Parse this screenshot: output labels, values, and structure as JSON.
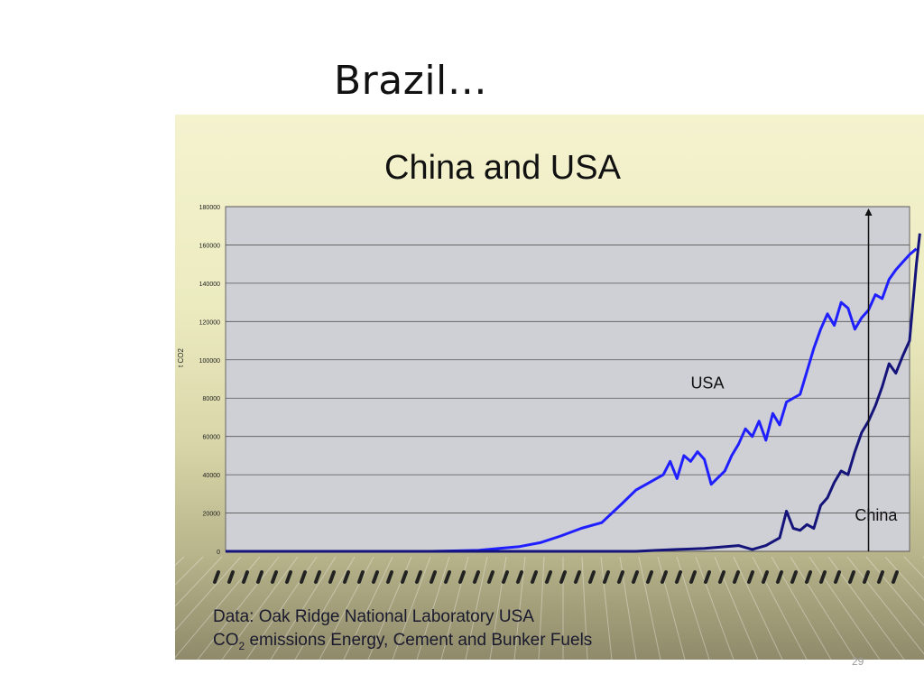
{
  "slide": {
    "title": "Brazil…",
    "page_number": "29"
  },
  "chart_data": {
    "type": "line",
    "title": "China and USA",
    "ylabel": "t CO2",
    "xlabel": "",
    "ylim": [
      0,
      180000
    ],
    "yticks": [
      "0",
      "20000",
      "40000",
      "60000",
      "80000",
      "100000",
      "120000",
      "140000",
      "160000",
      "180000"
    ],
    "x_domain": [
      0,
      100
    ],
    "series": [
      {
        "name": "USA",
        "color": "#1f1fff",
        "points": [
          [
            0,
            0
          ],
          [
            30,
            0
          ],
          [
            37,
            500
          ],
          [
            40,
            1500
          ],
          [
            43,
            2500
          ],
          [
            46,
            4500
          ],
          [
            49,
            8000
          ],
          [
            52,
            12000
          ],
          [
            55,
            15000
          ],
          [
            58,
            25000
          ],
          [
            60,
            32000
          ],
          [
            62,
            36000
          ],
          [
            64,
            40000
          ],
          [
            65,
            47000
          ],
          [
            66,
            38000
          ],
          [
            67,
            50000
          ],
          [
            68,
            47000
          ],
          [
            69,
            52000
          ],
          [
            70,
            48000
          ],
          [
            71,
            35000
          ],
          [
            73,
            42000
          ],
          [
            74,
            50000
          ],
          [
            75,
            56000
          ],
          [
            76,
            64000
          ],
          [
            77,
            60000
          ],
          [
            78,
            68000
          ],
          [
            79,
            58000
          ],
          [
            80,
            72000
          ],
          [
            81,
            66000
          ],
          [
            82,
            78000
          ],
          [
            84,
            82000
          ],
          [
            85,
            94000
          ],
          [
            86,
            106000
          ],
          [
            87,
            116000
          ],
          [
            88,
            124000
          ],
          [
            89,
            118000
          ],
          [
            90,
            130000
          ],
          [
            91,
            127000
          ],
          [
            92,
            116000
          ],
          [
            93,
            122000
          ],
          [
            94,
            126000
          ],
          [
            95,
            134000
          ],
          [
            96,
            132000
          ],
          [
            97,
            142000
          ],
          [
            98,
            147000
          ],
          [
            99,
            151000
          ],
          [
            100,
            155000
          ],
          [
            101,
            158000
          ]
        ]
      },
      {
        "name": "China",
        "color": "#14147a",
        "points": [
          [
            0,
            0
          ],
          [
            60,
            0
          ],
          [
            63,
            500
          ],
          [
            66,
            1000
          ],
          [
            70,
            1500
          ],
          [
            75,
            3000
          ],
          [
            77,
            1000
          ],
          [
            79,
            3000
          ],
          [
            81,
            7000
          ],
          [
            82,
            21000
          ],
          [
            83,
            12000
          ],
          [
            84,
            11000
          ],
          [
            85,
            14000
          ],
          [
            86,
            12000
          ],
          [
            87,
            24000
          ],
          [
            88,
            28000
          ],
          [
            89,
            36000
          ],
          [
            90,
            42000
          ],
          [
            91,
            40000
          ],
          [
            92,
            52000
          ],
          [
            93,
            62000
          ],
          [
            94,
            68000
          ],
          [
            95,
            76000
          ],
          [
            96,
            86000
          ],
          [
            97,
            98000
          ],
          [
            98,
            93000
          ],
          [
            99,
            102000
          ],
          [
            100,
            110000
          ],
          [
            101,
            150000
          ],
          [
            101.5,
            166000
          ]
        ]
      }
    ],
    "annotations": [
      {
        "text": "USA",
        "x": 68,
        "y": 85000
      },
      {
        "text": "China",
        "x": 92,
        "y": 16000
      }
    ],
    "marker_line_x": 94,
    "grid": true,
    "footer_line1": "Data: Oak Ridge National Laboratory USA",
    "footer_line2_prefix": "CO",
    "footer_line2_sub": "2",
    "footer_line2_suffix": " emissions Energy, Cement and Bunker Fuels"
  }
}
